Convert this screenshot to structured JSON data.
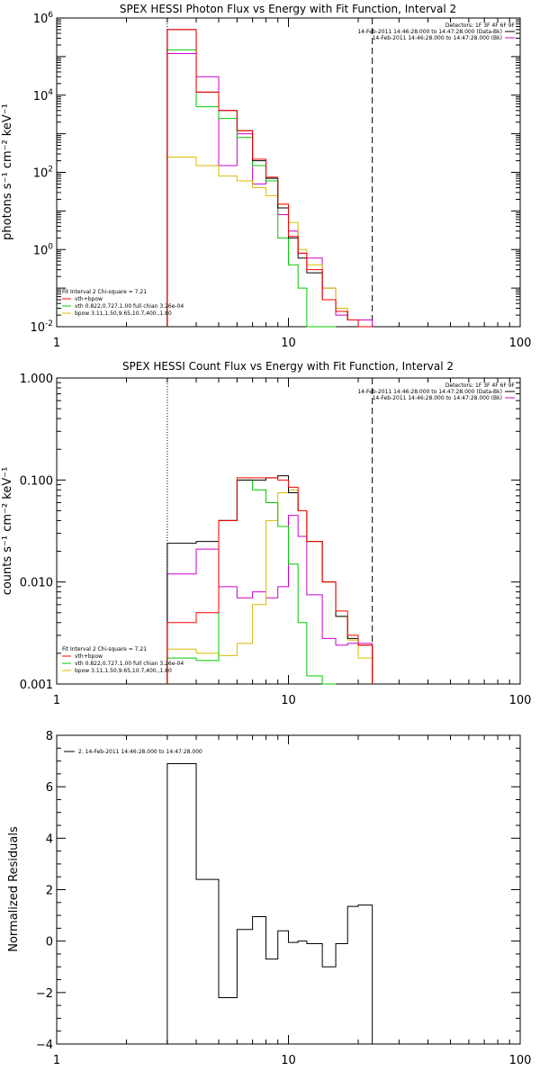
{
  "colors": {
    "total": "#000000",
    "model_sum": "#ff0000",
    "vth": "#00cc00",
    "bpow": "#ddbb00",
    "bk": "#cc00cc"
  },
  "chart_data": [
    {
      "type": "line",
      "title": "SPEX HESSI Photon Flux vs Energy with Fit Function, Interval 2",
      "ylabel": "photons s⁻¹ cm⁻² keV⁻¹",
      "xscale": "log",
      "yscale": "log",
      "xlim": [
        1,
        100
      ],
      "ylim": [
        0.01,
        1000000
      ],
      "xticks": [
        "1",
        "10",
        "100"
      ],
      "yticks": [
        {
          "base": "10",
          "exp": "6",
          "value": 1000000
        },
        {
          "base": "10",
          "exp": "4",
          "value": 10000
        },
        {
          "base": "10",
          "exp": "2",
          "value": 100
        },
        {
          "base": "10",
          "exp": "0",
          "value": 1
        },
        {
          "base": "10",
          "exp": "-2",
          "value": 0.01
        }
      ],
      "legend_top": [
        "Detectors: 1F 3F 4F 6F 9F",
        "14-Feb-2011 14:46:28.000 to 14:47:28.000 (Data-Bk)",
        "14-Feb-2011 14:46:28.000 to 14:47:28.000 (Bk)"
      ],
      "legend_bottom": [
        "Fit Interval 2   Chi-square = 7.21",
        "vth+bpow",
        "vth 0.822,0.727,1.00  full chian 3.26e-04",
        "bpow 3.11,1.50,9.65,10.7,400.,1.80"
      ],
      "vlines": [
        3,
        23
      ],
      "edges": [
        3,
        4,
        5,
        6,
        7,
        8,
        9,
        10,
        11,
        12,
        14,
        16,
        18,
        20,
        23
      ],
      "series": [
        {
          "color_key": "total",
          "values": [
            500000,
            12000,
            4000,
            1200,
            200,
            70,
            12,
            2.0,
            0.6,
            0.25,
            0.05,
            0.025,
            0.015,
            0.01
          ]
        },
        {
          "color_key": "model_sum",
          "values": [
            500000,
            12000,
            4000,
            1200,
            220,
            75,
            15,
            2.2,
            0.8,
            0.3,
            0.05,
            0.025,
            0.015,
            0.01
          ]
        },
        {
          "color_key": "vth",
          "values": [
            150000,
            5000,
            2500,
            800,
            150,
            60,
            2.0,
            0.4,
            0.1,
            0.01,
            0.008
          ]
        },
        {
          "color_key": "bpow",
          "values": [
            250,
            150,
            80,
            60,
            40,
            25,
            15,
            5.0,
            1.0,
            0.4,
            0.1,
            0.03,
            0.015,
            0.01
          ]
        },
        {
          "color_key": "bk",
          "values": [
            120000,
            30000,
            150,
            1000,
            50,
            60,
            8.0,
            3.0,
            0.8,
            0.6,
            0.1,
            0.02,
            0.015,
            0.015
          ]
        }
      ]
    },
    {
      "type": "line",
      "title": "SPEX HESSI Count Flux vs Energy with Fit Function, Interval 2",
      "ylabel": "counts s⁻¹ cm⁻² keV⁻¹",
      "xscale": "log",
      "yscale": "log",
      "xlim": [
        1,
        100
      ],
      "ylim": [
        0.001,
        1.0
      ],
      "xticks": [
        "1",
        "10",
        "100"
      ],
      "yticks": [
        {
          "label": "1.000",
          "value": 1.0
        },
        {
          "label": "0.100",
          "value": 0.1
        },
        {
          "label": "0.010",
          "value": 0.01
        },
        {
          "label": "0.001",
          "value": 0.001
        }
      ],
      "legend_top": [
        "Detectors: 1F 3F 4F 6F 9F",
        "14-Feb-2011 14:46:28.000 to 14:47:28.000 (Data-Bk)",
        "14-Feb-2011 14:46:28.000 to 14:47:28.000 (Bk)"
      ],
      "legend_bottom": [
        "Fit Interval 2   Chi-square = 7.21",
        "vth+bpow",
        "vth 0.822,0.727,1.00  full chian 3.26e-04",
        "bpow 3.11,1.50,9.65,10.7,400.,1.80"
      ],
      "vlines": [
        3,
        23
      ],
      "edges": [
        3,
        4,
        5,
        6,
        7,
        8,
        9,
        10,
        11,
        12,
        14,
        16,
        18,
        20,
        23
      ],
      "series": [
        {
          "color_key": "total",
          "values": [
            0.024,
            0.025,
            0.04,
            0.1,
            0.1,
            0.105,
            0.11,
            0.075,
            0.05,
            0.025,
            0.01,
            0.0046,
            0.0028,
            0.0024
          ]
        },
        {
          "color_key": "model_sum",
          "values": [
            0.004,
            0.005,
            0.04,
            0.105,
            0.105,
            0.105,
            0.1,
            0.085,
            0.05,
            0.025,
            0.01,
            0.0052,
            0.003,
            0.0024
          ]
        },
        {
          "color_key": "vth",
          "values": [
            0.0018,
            0.0017,
            0.04,
            0.1,
            0.08,
            0.06,
            0.035,
            0.015,
            0.004,
            0.0012,
            0.0009
          ]
        },
        {
          "color_key": "bpow",
          "values": [
            0.0022,
            0.002,
            0.0019,
            0.0025,
            0.006,
            0.04,
            0.075,
            0.08,
            0.05,
            0.025,
            0.01,
            0.0046,
            0.0027,
            0.0018
          ]
        },
        {
          "color_key": "bk",
          "values": [
            0.012,
            0.021,
            0.009,
            0.007,
            0.008,
            0.007,
            0.009,
            0.045,
            0.028,
            0.0075,
            0.0028,
            0.0024,
            0.0025,
            0.0025
          ]
        }
      ]
    },
    {
      "type": "line",
      "title": "",
      "ylabel": "Normalized Residuals",
      "xscale": "log",
      "xlim": [
        1,
        100
      ],
      "ylim": [
        -4,
        8
      ],
      "xticks": [
        "1",
        "10",
        "100"
      ],
      "yticks": [
        {
          "label": "8",
          "value": 8
        },
        {
          "label": "6",
          "value": 6
        },
        {
          "label": "4",
          "value": 4
        },
        {
          "label": "2",
          "value": 2
        },
        {
          "label": "0",
          "value": 0
        },
        {
          "label": "−2",
          "value": -2
        },
        {
          "label": "−4",
          "value": -4
        }
      ],
      "legend_top": [
        "2. 14-Feb-2011 14:46:28.000 to 14:47:28.000"
      ],
      "edges": [
        3,
        4,
        5,
        6,
        7,
        8,
        9,
        10,
        11,
        12,
        14,
        16,
        18,
        20,
        23
      ],
      "series": [
        {
          "color_key": "total",
          "values": [
            6.9,
            2.4,
            -2.2,
            0.45,
            0.95,
            -0.7,
            0.4,
            -0.05,
            0.0,
            -0.1,
            -1.0,
            -0.1,
            1.35,
            1.4
          ]
        }
      ]
    }
  ]
}
